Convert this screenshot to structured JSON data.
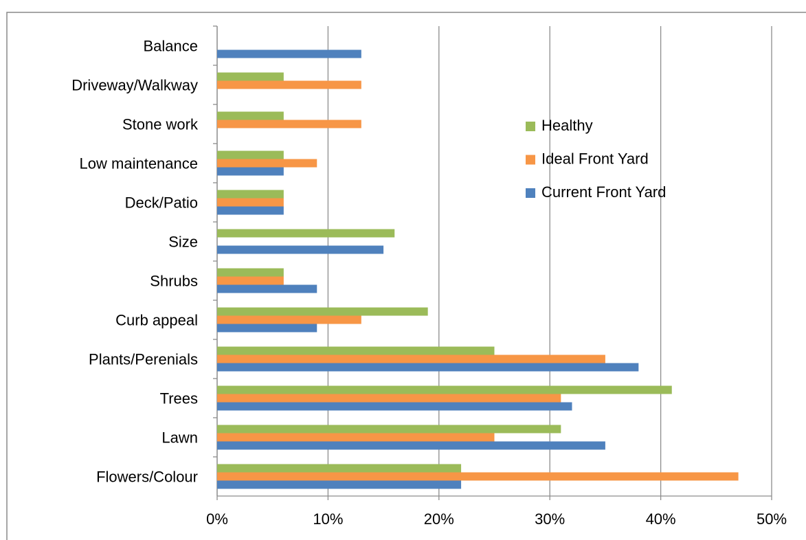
{
  "chart_data": {
    "type": "hbar",
    "categories": [
      "Balance",
      "Driveway/Walkway",
      "Stone work",
      "Low maintenance",
      "Deck/Patio",
      "Size",
      "Shrubs",
      "Curb appeal",
      "Plants/Perenials",
      "Trees",
      "Lawn",
      "Flowers/Colour"
    ],
    "series": [
      {
        "name": "Current Front Yard",
        "color": "#4f81bd",
        "values": [
          13,
          0,
          0,
          6,
          6,
          15,
          9,
          9,
          38,
          32,
          35,
          22
        ]
      },
      {
        "name": "Ideal Front Yard",
        "color": "#f79646",
        "values": [
          0,
          13,
          13,
          9,
          6,
          0,
          6,
          13,
          35,
          31,
          25,
          47
        ]
      },
      {
        "name": "Healthy",
        "color": "#9bbb59",
        "values": [
          0,
          6,
          6,
          6,
          6,
          16,
          6,
          19,
          25,
          41,
          31,
          22
        ]
      }
    ],
    "xlim": [
      0,
      50
    ],
    "xticks": [
      {
        "value": 0,
        "label": "0%"
      },
      {
        "value": 10,
        "label": "10%"
      },
      {
        "value": 20,
        "label": "20%"
      },
      {
        "value": 30,
        "label": "30%"
      },
      {
        "value": 40,
        "label": "40%"
      },
      {
        "value": 50,
        "label": "50%"
      }
    ],
    "grid": true
  }
}
